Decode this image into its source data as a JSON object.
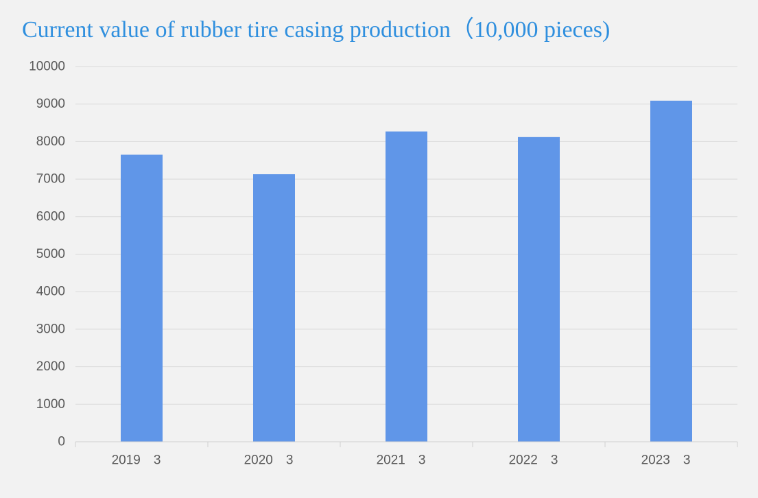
{
  "colors": {
    "background": "#f2f2f2",
    "bar": "#6096e8",
    "title": "#2f8fde",
    "grid": "#d9d9d9",
    "axis_line": "#d0d0d0",
    "tick_text": "#595959"
  },
  "chart_data": {
    "type": "bar",
    "title": "Current value of rubber tire casing production（10,000 pieces)",
    "xlabel": "",
    "ylabel": "",
    "categories": [
      "2019　3",
      "2020　3",
      "2021　3",
      "2022　3",
      "2023　3"
    ],
    "series": [
      {
        "values": [
          7650,
          7130,
          8270,
          8120,
          9090
        ]
      }
    ],
    "ylim": [
      0,
      10000
    ],
    "yticks": [
      0,
      1000,
      2000,
      3000,
      4000,
      5000,
      6000,
      7000,
      8000,
      9000,
      10000
    ],
    "grid": true,
    "legend": "none"
  }
}
